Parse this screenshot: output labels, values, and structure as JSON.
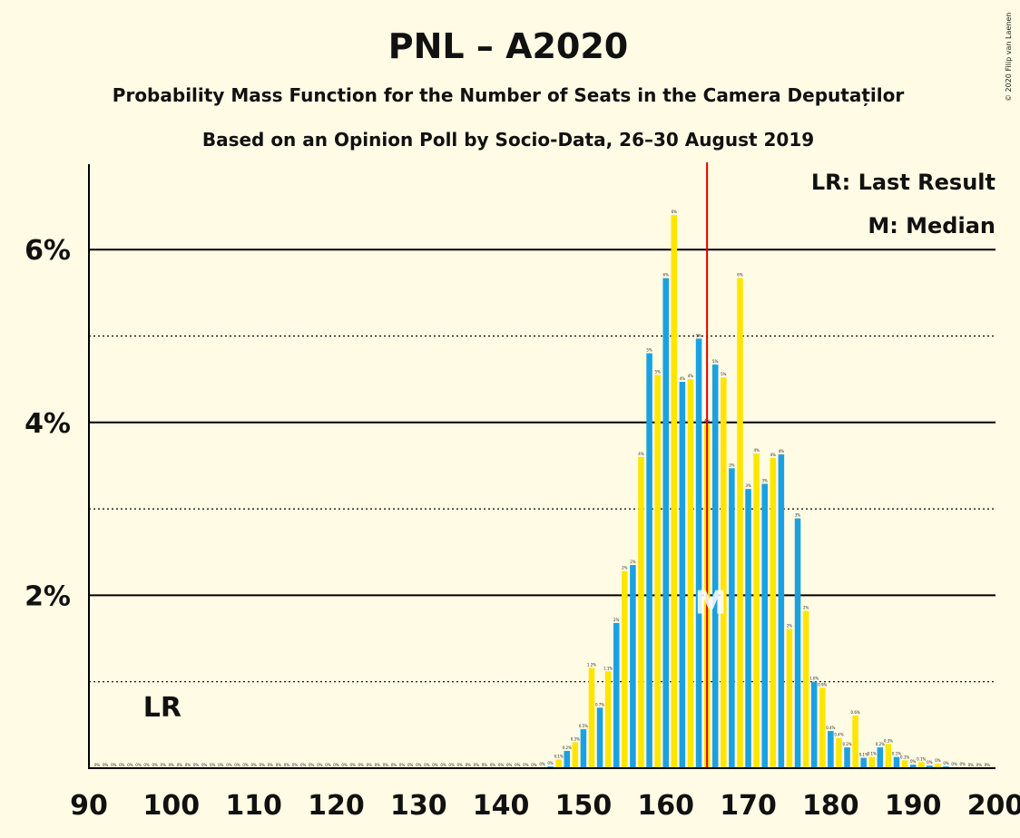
{
  "chart_data": {
    "type": "bar",
    "title": "PNL – A2020",
    "subtitle_1": "Probability Mass Function for the Number of Seats in the Camera Deputaților",
    "subtitle_2": "Based on an Opinion Poll by Socio-Data, 26–30 August 2019",
    "copyright": "© 2020 Filip van Laenen",
    "legend": {
      "last_result": "LR: Last Result",
      "median": "M: Median"
    },
    "markers": {
      "last_result_label": "LR",
      "last_result_x": 100,
      "median_label": "M",
      "median_x": 165
    },
    "xlim": [
      90,
      200
    ],
    "ylim": [
      0,
      7
    ],
    "x_ticks": [
      90,
      100,
      110,
      120,
      130,
      140,
      150,
      160,
      170,
      180,
      190,
      200
    ],
    "y_ticks": [
      {
        "value": 2,
        "label": "2%"
      },
      {
        "value": 4,
        "label": "4%"
      },
      {
        "value": 6,
        "label": "6%"
      }
    ],
    "y_minor_grid": [
      1,
      3,
      5
    ],
    "colors": {
      "blue": "#1BA1E2",
      "yellow": "#FFE500",
      "median_line": "#E00000",
      "grid": "#000000",
      "background": "#FFFBE4"
    },
    "seats": [
      91,
      92,
      93,
      94,
      95,
      96,
      97,
      98,
      99,
      100,
      101,
      102,
      103,
      104,
      105,
      106,
      107,
      108,
      109,
      110,
      111,
      112,
      113,
      114,
      115,
      116,
      117,
      118,
      119,
      120,
      121,
      122,
      123,
      124,
      125,
      126,
      127,
      128,
      129,
      130,
      131,
      132,
      133,
      134,
      135,
      136,
      137,
      138,
      139,
      140,
      141,
      142,
      143,
      144,
      145,
      146,
      147,
      148,
      149,
      150,
      151,
      152,
      153,
      154,
      155,
      156,
      157,
      158,
      159,
      160,
      161,
      162,
      163,
      164,
      165,
      166,
      167,
      168,
      169,
      170,
      171,
      172,
      173,
      174,
      175,
      176,
      177,
      178,
      179,
      180,
      181,
      182,
      183,
      184,
      185,
      186,
      187,
      188,
      189,
      190,
      191,
      192,
      193,
      194,
      195,
      196,
      197,
      198,
      199
    ],
    "values": [
      0,
      0,
      0,
      0,
      0,
      0,
      0,
      0,
      0,
      0,
      0,
      0,
      0,
      0,
      0,
      0,
      0,
      0,
      0,
      0,
      0,
      0,
      0,
      0,
      0,
      0,
      0,
      0,
      0,
      0,
      0,
      0,
      0,
      0,
      0,
      0,
      0,
      0,
      0,
      0,
      0,
      0,
      0,
      0,
      0,
      0,
      0,
      0,
      0,
      0,
      0,
      0,
      0,
      0,
      0.01,
      0.02,
      0.1,
      0.2,
      0.3,
      0.45,
      1.16,
      0.7,
      1.12,
      1.68,
      2.28,
      2.35,
      3.6,
      4.8,
      4.55,
      5.67,
      6.4,
      4.47,
      4.5,
      4.97,
      3.98,
      4.67,
      4.52,
      3.47,
      5.67,
      3.23,
      3.64,
      3.29,
      3.59,
      3.63,
      1.61,
      2.89,
      1.82,
      1.0,
      0.93,
      0.43,
      0.35,
      0.24,
      0.61,
      0.12,
      0.13,
      0.24,
      0.28,
      0.13,
      0.09,
      0.04,
      0.07,
      0.03,
      0.05,
      0.02,
      0.01,
      0.01,
      0,
      0,
      0
    ],
    "bar_labels": [
      "0%",
      "0%",
      "0%",
      "0%",
      "0%",
      "0%",
      "0%",
      "0%",
      "0%",
      "0%",
      "0%",
      "0%",
      "0%",
      "0%",
      "0%",
      "0%",
      "0%",
      "0%",
      "0%",
      "0%",
      "0%",
      "0%",
      "0%",
      "0%",
      "0%",
      "0%",
      "0%",
      "0%",
      "0%",
      "0%",
      "0%",
      "0%",
      "0%",
      "0%",
      "0%",
      "0%",
      "0%",
      "0%",
      "0%",
      "0%",
      "0%",
      "0%",
      "0%",
      "0%",
      "0%",
      "0%",
      "0%",
      "0%",
      "0%",
      "0%",
      "0%",
      "0%",
      "0%",
      "0%",
      "0%",
      "0%",
      "0.1%",
      "0.2%",
      "0.3%",
      "0.5%",
      "1.2%",
      "0.7%",
      "1.1%",
      "2%",
      "2%",
      "2%",
      "4%",
      "5%",
      "5%",
      "6%",
      "6%",
      "4%",
      "4%",
      "5%",
      "4%",
      "5%",
      "5%",
      "3%",
      "6%",
      "3%",
      "4%",
      "3%",
      "4%",
      "4%",
      "2%",
      "3%",
      "2%",
      "1.0%",
      "0.9%",
      "0.4%",
      "0.4%",
      "0.2%",
      "0.6%",
      "0.1%",
      "0.1%",
      "0.2%",
      "0.3%",
      "0.1%",
      "0.1%",
      "0%",
      "0.1%",
      "0%",
      "0%",
      "0%",
      "0%",
      "0%",
      "0%",
      "0%",
      "0%"
    ]
  }
}
